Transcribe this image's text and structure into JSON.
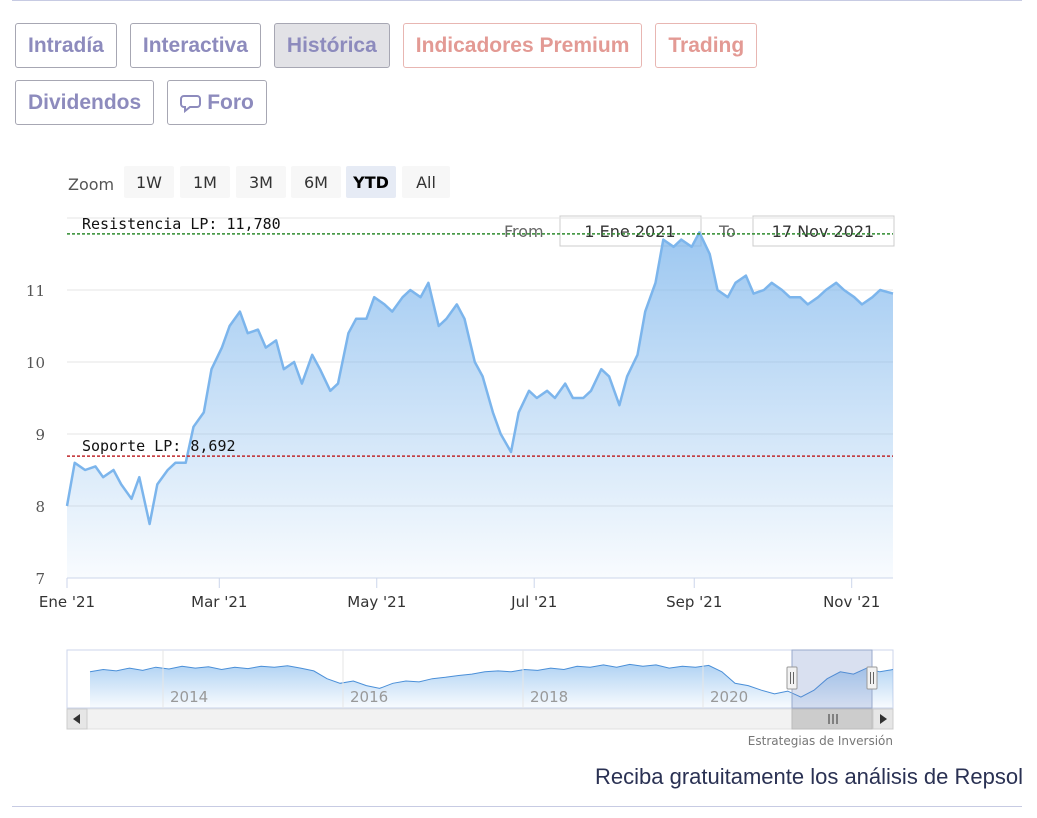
{
  "tabs_row1": [
    {
      "label": "Intradía",
      "style": "normal"
    },
    {
      "label": "Interactiva",
      "style": "normal"
    },
    {
      "label": "Histórica",
      "style": "active"
    },
    {
      "label": "Indicadores Premium",
      "style": "premium"
    },
    {
      "label": "Trading",
      "style": "premium"
    }
  ],
  "tabs_row2": [
    {
      "label": "Dividendos",
      "style": "normal"
    },
    {
      "label": "Foro",
      "style": "normal",
      "icon": "chat-bubble-icon"
    }
  ],
  "range_selector": {
    "zoom_label": "Zoom",
    "buttons": [
      "1W",
      "1M",
      "3M",
      "6M",
      "YTD",
      "All"
    ],
    "selected": "YTD",
    "from_label": "From",
    "from_value": "1 Ene 2021",
    "to_label": "To",
    "to_value": "17 Nov 2021"
  },
  "navigator": {
    "year_labels": [
      "2014",
      "2016",
      "2018",
      "2020"
    ],
    "handle_icon": "grip-icon"
  },
  "credits": "Estrategias de Inversión",
  "footer_text": "Reciba gratuitamente los análisis de Repsol",
  "colors": {
    "line": "#7cb5ec",
    "resistance": "#2e8b2e",
    "support": "#c0282b",
    "accent": "#8d8bbd"
  },
  "chart_data": {
    "type": "area",
    "ylim": [
      7,
      12
    ],
    "y_ticks": [
      7,
      8,
      9,
      10,
      11
    ],
    "x_ticks": [
      {
        "label": "Ene '21",
        "x": "2021-01-01"
      },
      {
        "label": "Mar '21",
        "x": "2021-03-01"
      },
      {
        "label": "May '21",
        "x": "2021-05-01"
      },
      {
        "label": "Jul '21",
        "x": "2021-07-01"
      },
      {
        "label": "Sep '21",
        "x": "2021-09-01"
      },
      {
        "label": "Nov '21",
        "x": "2021-11-01"
      }
    ],
    "x_range": [
      "2021-01-01",
      "2021-11-17"
    ],
    "grid": true,
    "series": [
      {
        "x": [
          "2021-01-01",
          "2021-01-04",
          "2021-01-08",
          "2021-01-12",
          "2021-01-15",
          "2021-01-19",
          "2021-01-22",
          "2021-01-26",
          "2021-01-29",
          "2021-02-02",
          "2021-02-05",
          "2021-02-09",
          "2021-02-12",
          "2021-02-16",
          "2021-02-19",
          "2021-02-23",
          "2021-02-26",
          "2021-03-02",
          "2021-03-05",
          "2021-03-09",
          "2021-03-12",
          "2021-03-16",
          "2021-03-19",
          "2021-03-23",
          "2021-03-26",
          "2021-03-30",
          "2021-04-02",
          "2021-04-06",
          "2021-04-09",
          "2021-04-13",
          "2021-04-16",
          "2021-04-20",
          "2021-04-23",
          "2021-04-27",
          "2021-04-30",
          "2021-05-04",
          "2021-05-07",
          "2021-05-11",
          "2021-05-14",
          "2021-05-18",
          "2021-05-21",
          "2021-05-25",
          "2021-05-28",
          "2021-06-01",
          "2021-06-04",
          "2021-06-08",
          "2021-06-11",
          "2021-06-15",
          "2021-06-18",
          "2021-06-22",
          "2021-06-25",
          "2021-06-29",
          "2021-07-02",
          "2021-07-06",
          "2021-07-09",
          "2021-07-13",
          "2021-07-16",
          "2021-07-20",
          "2021-07-23",
          "2021-07-27",
          "2021-07-30",
          "2021-08-03",
          "2021-08-06",
          "2021-08-10",
          "2021-08-13",
          "2021-08-17",
          "2021-08-20",
          "2021-08-24",
          "2021-08-27",
          "2021-08-31",
          "2021-09-03",
          "2021-09-07",
          "2021-09-10",
          "2021-09-14",
          "2021-09-17",
          "2021-09-21",
          "2021-09-24",
          "2021-09-28",
          "2021-10-01",
          "2021-10-05",
          "2021-10-08",
          "2021-10-12",
          "2021-10-15",
          "2021-10-19",
          "2021-10-22",
          "2021-10-26",
          "2021-10-29",
          "2021-11-02",
          "2021-11-05",
          "2021-11-09",
          "2021-11-12",
          "2021-11-17"
        ],
        "y": [
          8.0,
          8.6,
          8.5,
          8.55,
          8.4,
          8.5,
          8.3,
          8.1,
          8.4,
          7.75,
          8.3,
          8.5,
          8.6,
          8.6,
          9.1,
          9.3,
          9.9,
          10.2,
          10.5,
          10.7,
          10.4,
          10.45,
          10.2,
          10.3,
          9.9,
          10.0,
          9.7,
          10.1,
          9.9,
          9.6,
          9.7,
          10.4,
          10.6,
          10.6,
          10.9,
          10.8,
          10.7,
          10.9,
          11.0,
          10.9,
          11.1,
          10.5,
          10.6,
          10.8,
          10.6,
          10.0,
          9.8,
          9.3,
          9.0,
          8.75,
          9.3,
          9.6,
          9.5,
          9.6,
          9.5,
          9.7,
          9.5,
          9.5,
          9.6,
          9.9,
          9.8,
          9.4,
          9.8,
          10.1,
          10.7,
          11.1,
          11.7,
          11.6,
          11.7,
          11.6,
          11.8,
          11.5,
          11.0,
          10.9,
          11.1,
          11.2,
          10.95,
          11.0,
          11.1,
          11.0,
          10.9,
          10.9,
          10.8,
          10.9,
          11.0,
          11.1,
          11.0,
          10.9,
          10.8,
          10.9,
          11.0,
          10.95
        ]
      }
    ],
    "annotations": [
      {
        "label": "Resistencia LP: 11,780",
        "value": 11.78,
        "style": "dashed",
        "color": "#2e8b2e"
      },
      {
        "label": "Soporte LP: 8,692",
        "value": 8.692,
        "style": "dashed",
        "color": "#c0282b"
      }
    ]
  }
}
